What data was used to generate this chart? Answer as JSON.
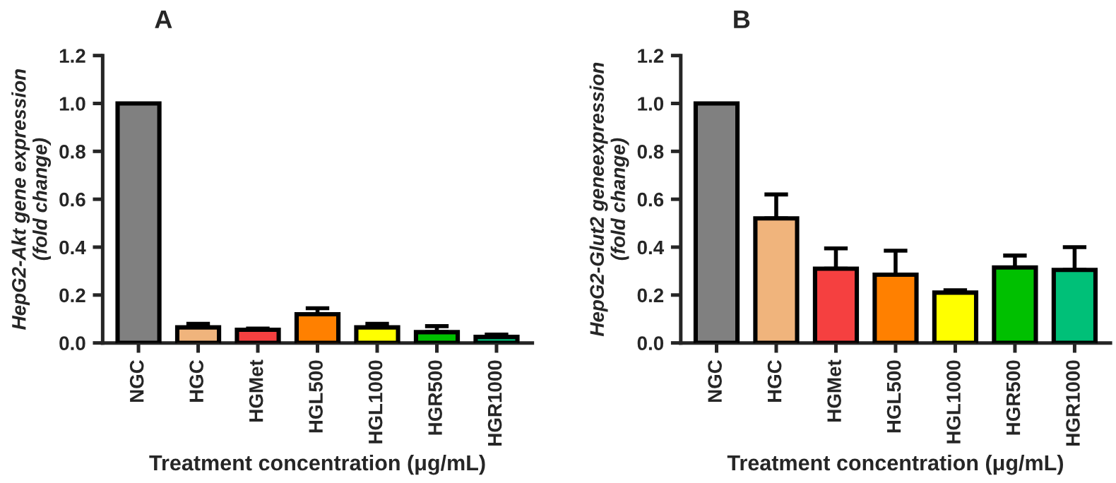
{
  "chart_data": [
    {
      "type": "bar",
      "title": "A",
      "xlabel": "Treatment concentration (μg/mL)",
      "ylabel": "HepG2-Akt gene expression\n(fold change)",
      "categories": [
        "NGC",
        "HGC",
        "HGMet",
        "HGL500",
        "HGL1000",
        "HGR500",
        "HGR1000"
      ],
      "values": [
        1.0,
        0.065,
        0.055,
        0.12,
        0.065,
        0.045,
        0.025
      ],
      "errors": [
        null,
        [
          0.065,
          0.08
        ],
        [
          0.055,
          0.06
        ],
        [
          0.12,
          0.145
        ],
        [
          0.065,
          0.08
        ],
        [
          0.045,
          0.07
        ],
        [
          0.025,
          0.035
        ]
      ],
      "colors": [
        "#808080",
        "#f0b47c",
        "#f54040",
        "#ff8000",
        "#ffff00",
        "#00c000",
        "#00c078"
      ],
      "ylim": [
        0,
        1.2
      ],
      "yticks": [
        {
          "value": 0,
          "label": "0.0"
        },
        {
          "value": 0.2,
          "label": "0.2"
        },
        {
          "value": 0.4,
          "label": "0.4"
        },
        {
          "value": 0.6,
          "label": "0.6"
        },
        {
          "value": 0.8,
          "label": "0.8"
        },
        {
          "value": 1.0,
          "label": "1.0"
        },
        {
          "value": 1.2,
          "label": "1.2"
        }
      ],
      "grid": false,
      "legend": false
    },
    {
      "type": "bar",
      "title": "B",
      "xlabel": "Treatment concentration (μg/mL)",
      "ylabel": "HepG2-Glut2 geneexpression\n(fold change)",
      "categories": [
        "NGC",
        "HGC",
        "HGMet",
        "HGL500",
        "HGL1000",
        "HGR500",
        "HGR1000"
      ],
      "values": [
        1.0,
        0.52,
        0.31,
        0.285,
        0.21,
        0.315,
        0.305
      ],
      "errors": [
        null,
        [
          0.52,
          0.62
        ],
        [
          0.31,
          0.395
        ],
        [
          0.285,
          0.385
        ],
        [
          0.21,
          0.22
        ],
        [
          0.315,
          0.365
        ],
        [
          0.305,
          0.4
        ]
      ],
      "colors": [
        "#808080",
        "#f0b47c",
        "#f54040",
        "#ff8000",
        "#ffff00",
        "#00c000",
        "#00c078"
      ],
      "ylim": [
        0,
        1.2
      ],
      "yticks": [
        {
          "value": 0,
          "label": "0.0"
        },
        {
          "value": 0.2,
          "label": "0.2"
        },
        {
          "value": 0.4,
          "label": "0.4"
        },
        {
          "value": 0.6,
          "label": "0.6"
        },
        {
          "value": 0.8,
          "label": "0.8"
        },
        {
          "value": 1.0,
          "label": "1.0"
        },
        {
          "value": 1.2,
          "label": "1.2"
        }
      ],
      "grid": false,
      "legend": false
    }
  ]
}
